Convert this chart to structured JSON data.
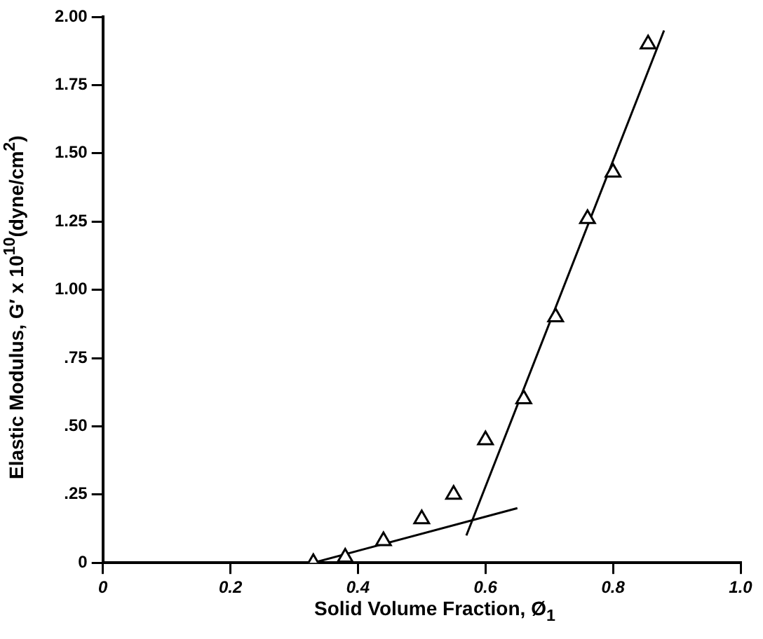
{
  "chart_data": {
    "type": "scatter",
    "xlabel": "Solid Volume Fraction, Ø$_{1}$",
    "ylabel": "Elastic Modulus, G′ x 10$^{10}$(dyne/cm$^{2}$)",
    "xlim": [
      0,
      1.0
    ],
    "ylim": [
      0,
      2.0
    ],
    "xticks": [
      0,
      {
        "value": 0.2,
        "label": "0.2"
      },
      {
        "value": 0.4,
        "label": "0.4"
      },
      {
        "value": 0.6,
        "label": "0.6"
      },
      {
        "value": 0.8,
        "label": "0.8"
      },
      {
        "value": 1.0,
        "label": "1.0"
      }
    ],
    "yticks": [
      0,
      {
        "value": 0.25,
        "label": ".25"
      },
      {
        "value": 0.5,
        "label": ".50"
      },
      {
        "value": 0.75,
        "label": ".75"
      },
      {
        "value": 1.0,
        "label": "1.00"
      },
      {
        "value": 1.25,
        "label": "1.25"
      },
      {
        "value": 1.5,
        "label": "1.50"
      },
      {
        "value": 1.75,
        "label": "1.75"
      },
      {
        "value": 2.0,
        "label": "2.00"
      }
    ],
    "grid": false,
    "legend": false,
    "series": [
      {
        "marker": "triangle",
        "color": "#000000",
        "x": [
          0.33,
          0.38,
          0.44,
          0.5,
          0.55,
          0.6,
          0.66,
          0.71,
          0.76,
          0.8,
          0.855
        ],
        "values": [
          0.0,
          0.02,
          0.08,
          0.16,
          0.25,
          0.45,
          0.6,
          0.9,
          1.26,
          1.43,
          1.9
        ]
      },
      {
        "type": "line",
        "marker": "none",
        "color": "#000000",
        "x": [
          0,
          0.33,
          0.65
        ],
        "values": [
          0,
          0,
          0.2
        ]
      },
      {
        "type": "line",
        "marker": "none",
        "color": "#000000",
        "x": [
          0.57,
          0.88
        ],
        "values": [
          0.1,
          1.95
        ]
      }
    ]
  }
}
